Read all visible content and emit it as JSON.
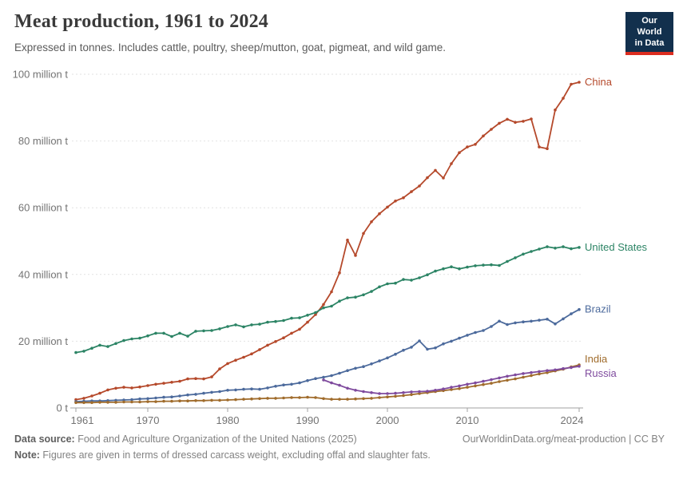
{
  "header": {
    "title": "Meat production, 1961 to 2024",
    "subtitle": "Expressed in tonnes. Includes cattle, poultry, sheep/mutton, goat, pigmeat, and wild game.",
    "logo_line1": "Our World",
    "logo_line2": "in Data"
  },
  "footer": {
    "source_label": "Data source:",
    "source_text": " Food and Agriculture Organization of the United Nations (2025)",
    "citation": "OurWorldinData.org/meat-production | CC BY",
    "note_label": "Note:",
    "note_text": " Figures are given in terms of dressed carcass weight, excluding offal and slaughter fats."
  },
  "colors": {
    "china": "#b5492b",
    "united_states": "#2c8465",
    "brazil": "#4c6a9c",
    "india": "#a06c2c",
    "russia": "#7f4b9e",
    "grid": "#e2e2e2",
    "axis": "#a0a0a0",
    "axis_text": "#737373",
    "logo_bg": "#12304d",
    "logo_bar": "#dc2d20"
  },
  "chart_data": {
    "type": "line",
    "title": "Meat production, 1961 to 2024",
    "unit": "tonnes",
    "xlim": [
      1961,
      2024
    ],
    "ylim": [
      0,
      100
    ],
    "x_ticks": [
      1961,
      1970,
      1980,
      1990,
      2000,
      2010,
      2024
    ],
    "y_ticks": [
      0,
      20,
      40,
      60,
      80,
      100
    ],
    "y_tick_labels": [
      "0 t",
      "20 million t",
      "40 million t",
      "60 million t",
      "80 million t",
      "100 million t"
    ],
    "grid": "horizontal-dashed",
    "legend_position": "end-of-line",
    "series": [
      {
        "name": "China",
        "color": "#b5492b",
        "start_year": 1961,
        "values": [
          2.5,
          2.9,
          3.6,
          4.4,
          5.4,
          5.9,
          6.2,
          6.0,
          6.3,
          6.7,
          7.1,
          7.4,
          7.7,
          8.0,
          8.7,
          8.8,
          8.7,
          9.3,
          11.7,
          13.3,
          14.3,
          15.2,
          16.2,
          17.5,
          18.8,
          19.9,
          21.0,
          22.4,
          23.6,
          25.7,
          28.0,
          31.0,
          34.8,
          40.5,
          50.3,
          45.7,
          52.3,
          55.8,
          58.2,
          60.2,
          62.0,
          63.0,
          64.8,
          66.5,
          69.0,
          71.2,
          68.9,
          73.2,
          76.5,
          78.2,
          79.0,
          81.5,
          83.5,
          85.3,
          86.5,
          85.6,
          85.9,
          86.6,
          78.2,
          77.7,
          89.3,
          92.8,
          97.0,
          97.6
        ]
      },
      {
        "name": "United States",
        "color": "#2c8465",
        "start_year": 1961,
        "values": [
          16.6,
          17.0,
          17.9,
          18.8,
          18.4,
          19.3,
          20.2,
          20.7,
          20.9,
          21.6,
          22.4,
          22.4,
          21.4,
          22.4,
          21.5,
          23.0,
          23.1,
          23.2,
          23.7,
          24.4,
          24.9,
          24.3,
          24.9,
          25.1,
          25.7,
          25.9,
          26.2,
          26.9,
          27.0,
          27.8,
          28.6,
          30.0,
          30.5,
          32.0,
          33.0,
          33.2,
          33.9,
          34.9,
          36.3,
          37.2,
          37.4,
          38.5,
          38.3,
          39.0,
          39.9,
          41.0,
          41.7,
          42.3,
          41.7,
          42.2,
          42.6,
          42.8,
          42.9,
          42.7,
          43.9,
          45.0,
          46.1,
          46.9,
          47.6,
          48.3,
          47.9,
          48.3,
          47.7,
          48.1
        ]
      },
      {
        "name": "Brazil",
        "color": "#4c6a9c",
        "start_year": 1961,
        "values": [
          1.9,
          2.0,
          2.1,
          2.1,
          2.2,
          2.3,
          2.4,
          2.5,
          2.7,
          2.8,
          3.0,
          3.2,
          3.3,
          3.6,
          3.9,
          4.1,
          4.4,
          4.7,
          4.9,
          5.3,
          5.4,
          5.6,
          5.7,
          5.6,
          6.0,
          6.5,
          6.9,
          7.1,
          7.5,
          8.2,
          8.8,
          9.2,
          9.7,
          10.4,
          11.2,
          11.9,
          12.4,
          13.2,
          14.1,
          15.0,
          16.1,
          17.3,
          18.2,
          20.1,
          17.6,
          18.0,
          19.2,
          20.0,
          20.9,
          21.8,
          22.6,
          23.2,
          24.4,
          26.0,
          25.0,
          25.5,
          25.8,
          26.0,
          26.3,
          26.6,
          25.2,
          26.7,
          28.2,
          29.5
        ]
      },
      {
        "name": "India",
        "color": "#a06c2c",
        "start_year": 1961,
        "values": [
          1.6,
          1.6,
          1.6,
          1.7,
          1.7,
          1.7,
          1.8,
          1.8,
          1.8,
          1.9,
          1.9,
          2.0,
          2.0,
          2.1,
          2.1,
          2.2,
          2.2,
          2.3,
          2.3,
          2.4,
          2.5,
          2.6,
          2.7,
          2.8,
          2.9,
          2.9,
          3.0,
          3.1,
          3.1,
          3.2,
          3.1,
          2.8,
          2.6,
          2.6,
          2.6,
          2.7,
          2.8,
          2.9,
          3.1,
          3.3,
          3.5,
          3.7,
          4.0,
          4.3,
          4.6,
          4.9,
          5.2,
          5.5,
          5.8,
          6.2,
          6.6,
          7.0,
          7.4,
          7.9,
          8.3,
          8.7,
          9.2,
          9.7,
          10.2,
          10.6,
          11.1,
          11.6,
          12.3,
          12.9
        ]
      },
      {
        "name": "Russia",
        "color": "#7f4b9e",
        "start_year": 1992,
        "values": [
          8.4,
          7.5,
          6.8,
          5.9,
          5.3,
          4.9,
          4.6,
          4.3,
          4.3,
          4.4,
          4.6,
          4.8,
          4.9,
          5.0,
          5.3,
          5.7,
          6.2,
          6.6,
          7.1,
          7.5,
          8.0,
          8.5,
          9.0,
          9.5,
          9.9,
          10.3,
          10.6,
          10.9,
          11.2,
          11.4,
          11.8,
          12.1,
          12.5
        ]
      }
    ]
  }
}
